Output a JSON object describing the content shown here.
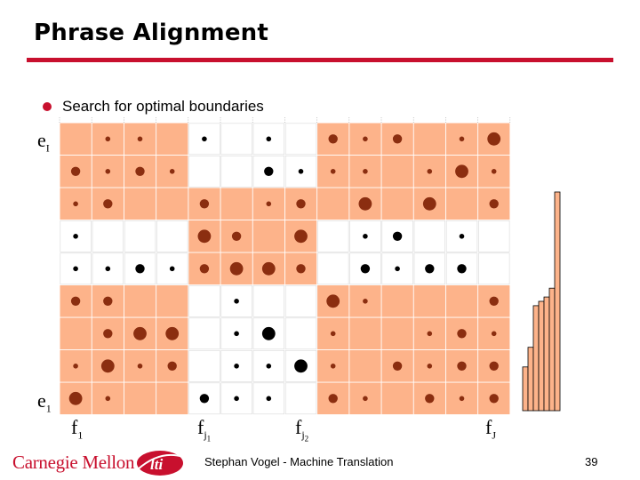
{
  "slide": {
    "title": "Phrase Alignment",
    "bullet": "Search for optimal boundaries",
    "footer_text": "Stephan Vogel - Machine Translation",
    "page_number": "39",
    "logo_text": "Carnegie Mellon",
    "lti_text": "lti"
  },
  "labels": {
    "e_top": {
      "base": "e",
      "sub": "I"
    },
    "e_bottom": {
      "base": "e",
      "sub": "1"
    },
    "f1": {
      "base": "f",
      "sub": "1"
    },
    "fj1": {
      "base": "f",
      "sub": "j",
      "subsub": "1"
    },
    "fj2": {
      "base": "f",
      "sub": "j",
      "subsub": "2"
    },
    "fJ": {
      "base": "f",
      "sub": "J"
    }
  },
  "colors": {
    "cell_shaded": "#fdb38a",
    "cell_plain": "#ffffff",
    "dot_shaded": "#8b2e10",
    "dot_plain": "#000000",
    "accent": "#c8102e",
    "histogram": "#fdb38a"
  },
  "matrix": {
    "columns": 14,
    "rows": 9,
    "column_groups": [
      {
        "start": 0,
        "end": 3
      },
      {
        "start": 4,
        "end": 7
      },
      {
        "start": 8,
        "end": 13
      }
    ],
    "row_groups": [
      {
        "rows": [
          0,
          1,
          2
        ],
        "shaded_group": 2
      },
      {
        "rows": [
          3,
          4
        ],
        "shaded_group": 1
      },
      {
        "rows": [
          5,
          6,
          7,
          8
        ],
        "shaded_group": [
          0,
          2
        ]
      }
    ],
    "shaded": [
      [
        1,
        1,
        1,
        1,
        0,
        0,
        0,
        0,
        1,
        1,
        1,
        1,
        1,
        1
      ],
      [
        1,
        1,
        1,
        1,
        0,
        0,
        0,
        0,
        1,
        1,
        1,
        1,
        1,
        1
      ],
      [
        1,
        1,
        1,
        1,
        1,
        1,
        1,
        1,
        1,
        1,
        1,
        1,
        1,
        1
      ],
      [
        0,
        0,
        0,
        0,
        1,
        1,
        1,
        1,
        0,
        0,
        0,
        0,
        0,
        0
      ],
      [
        0,
        0,
        0,
        0,
        1,
        1,
        1,
        1,
        0,
        0,
        0,
        0,
        0,
        0
      ],
      [
        1,
        1,
        1,
        1,
        0,
        0,
        0,
        0,
        1,
        1,
        1,
        1,
        1,
        1
      ],
      [
        1,
        1,
        1,
        1,
        0,
        0,
        0,
        0,
        1,
        1,
        1,
        1,
        1,
        1
      ],
      [
        1,
        1,
        1,
        1,
        0,
        0,
        0,
        0,
        1,
        1,
        1,
        1,
        1,
        1
      ],
      [
        1,
        1,
        1,
        1,
        0,
        0,
        0,
        0,
        1,
        1,
        1,
        1,
        1,
        1
      ]
    ],
    "dots": [
      [
        0,
        1,
        1,
        0,
        1,
        0,
        1,
        0,
        2,
        1,
        2,
        0,
        1,
        3
      ],
      [
        2,
        1,
        2,
        1,
        0,
        0,
        2,
        1,
        1,
        1,
        0,
        1,
        3,
        1
      ],
      [
        1,
        2,
        0,
        0,
        2,
        0,
        1,
        2,
        0,
        3,
        0,
        3,
        0,
        2
      ],
      [
        1,
        0,
        0,
        0,
        3,
        2,
        0,
        3,
        0,
        1,
        2,
        0,
        1,
        0
      ],
      [
        1,
        1,
        2,
        1,
        2,
        3,
        3,
        2,
        0,
        2,
        1,
        2,
        2,
        0
      ],
      [
        2,
        2,
        0,
        0,
        0,
        1,
        0,
        0,
        3,
        1,
        0,
        0,
        0,
        2
      ],
      [
        0,
        2,
        3,
        3,
        0,
        1,
        3,
        0,
        1,
        0,
        0,
        1,
        2,
        1
      ],
      [
        1,
        3,
        1,
        2,
        0,
        1,
        1,
        3,
        1,
        0,
        2,
        1,
        2,
        2
      ],
      [
        3,
        1,
        0,
        0,
        2,
        1,
        1,
        0,
        2,
        1,
        0,
        2,
        1,
        2
      ]
    ],
    "histogram_levels": [
      0.2,
      0.29,
      0.48,
      0.5,
      0.52,
      0.56,
      1.0
    ]
  }
}
